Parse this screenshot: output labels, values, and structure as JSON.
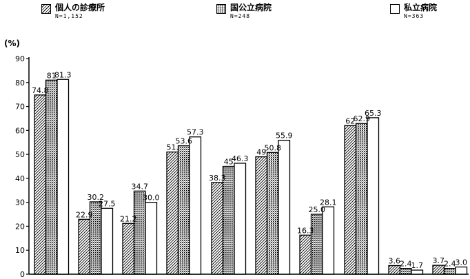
{
  "legend": [
    {
      "name": "個人の診療所",
      "n": "N=1,152",
      "pattern": "hatch"
    },
    {
      "name": "国公立病院",
      "n": "N=248",
      "pattern": "dots"
    },
    {
      "name": "私立病院",
      "n": "N=363",
      "pattern": "white"
    }
  ],
  "chart_data": {
    "type": "bar",
    "yunit": "(%)",
    "ylim": [
      0,
      90
    ],
    "yticks": [
      0,
      10,
      20,
      30,
      40,
      50,
      60,
      70,
      80,
      90
    ],
    "grid": false,
    "categories": [
      "",
      "",
      "",
      "",
      "",
      "",
      "",
      "",
      "",
      ""
    ],
    "series": [
      {
        "name": "個人の診療所",
        "pattern": "hatch",
        "values": [
          74.8,
          22.9,
          21.2,
          51,
          38.3,
          49,
          16.3,
          62,
          3.6,
          3.7
        ],
        "labels": [
          "74.8",
          "22.9",
          "21.2",
          "51.",
          "38.3",
          "49",
          "16.3",
          "62",
          "3.6",
          "3.7"
        ]
      },
      {
        "name": "国公立病院",
        "pattern": "dots",
        "values": [
          81,
          30.2,
          34.7,
          53.6,
          45,
          50.8,
          25,
          62.9,
          2.4,
          2.4
        ],
        "labels": [
          "81",
          "30.2",
          "34.7",
          "53.6",
          "45",
          "50.8",
          "25.0",
          "62.9",
          "2.4",
          "2.4"
        ]
      },
      {
        "name": "私立病院",
        "pattern": "white",
        "values": [
          81.3,
          27.5,
          30.0,
          57.3,
          46.3,
          55.9,
          28.1,
          65.3,
          1.7,
          3.0
        ],
        "labels": [
          "81.3",
          "27.5",
          "30.0",
          "57.3",
          "46.3",
          "55.9",
          "28.1",
          "65.3",
          "1.7",
          "3.0"
        ]
      }
    ]
  }
}
